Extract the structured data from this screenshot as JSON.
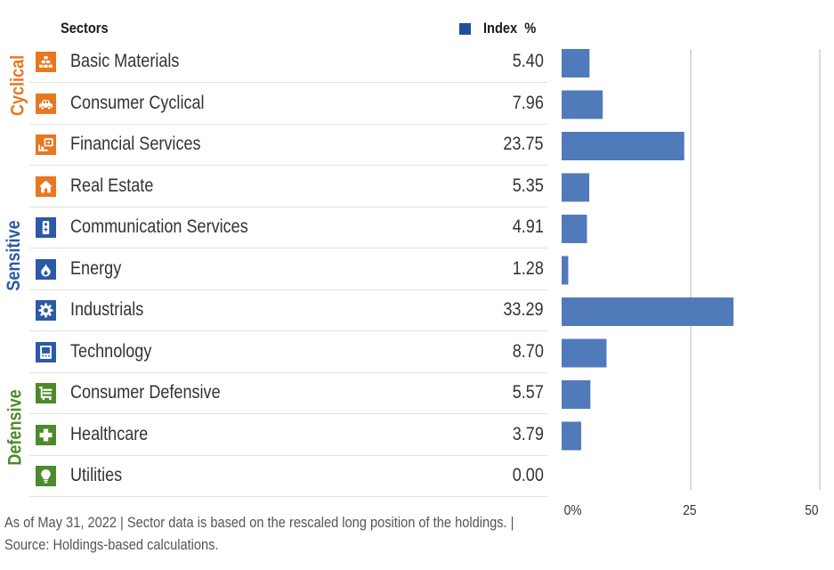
{
  "header": {
    "sectors_label": "Sectors",
    "legend_label": "Index  %"
  },
  "colors": {
    "cyclical": "#e87722",
    "sensitive": "#2a5aa8",
    "defensive": "#4e8a2c",
    "bar": "#4a76b8",
    "grid": "#cfcfcf"
  },
  "groups": [
    {
      "name": "Cyclical",
      "color": "#e87722"
    },
    {
      "name": "Sensitive",
      "color": "#2a5aa8"
    },
    {
      "name": "Defensive",
      "color": "#4e8a2c"
    }
  ],
  "rows": [
    {
      "name": "Basic Materials",
      "value": "5.40",
      "icon": "basic-materials-icon",
      "group": "Cyclical"
    },
    {
      "name": "Consumer Cyclical",
      "value": "7.96",
      "icon": "car-icon",
      "group": "Cyclical"
    },
    {
      "name": "Financial Services",
      "value": "23.75",
      "icon": "financial-services-icon",
      "group": "Cyclical"
    },
    {
      "name": "Real Estate",
      "value": "5.35",
      "icon": "house-icon",
      "group": "Cyclical"
    },
    {
      "name": "Communication Services",
      "value": "4.91",
      "icon": "phone-icon",
      "group": "Sensitive"
    },
    {
      "name": "Energy",
      "value": "1.28",
      "icon": "flame-icon",
      "group": "Sensitive"
    },
    {
      "name": "Industrials",
      "value": "33.29",
      "icon": "gear-icon",
      "group": "Sensitive"
    },
    {
      "name": "Technology",
      "value": "8.70",
      "icon": "computer-icon",
      "group": "Sensitive"
    },
    {
      "name": "Consumer Defensive",
      "value": "5.57",
      "icon": "cart-icon",
      "group": "Defensive"
    },
    {
      "name": "Healthcare",
      "value": "3.79",
      "icon": "cross-icon",
      "group": "Defensive"
    },
    {
      "name": "Utilities",
      "value": "0.00",
      "icon": "lightbulb-icon",
      "group": "Defensive"
    }
  ],
  "footnote": "As of May 31, 2022 | Sector data is based on the rescaled long position of the holdings. | Source: Holdings-based calculations.",
  "chart_data": {
    "type": "bar",
    "orientation": "horizontal",
    "title": "Sectors",
    "categories": [
      "Basic Materials",
      "Consumer Cyclical",
      "Financial Services",
      "Real Estate",
      "Communication Services",
      "Energy",
      "Industrials",
      "Technology",
      "Consumer Defensive",
      "Healthcare",
      "Utilities"
    ],
    "series": [
      {
        "name": "Index",
        "values": [
          5.4,
          7.96,
          23.75,
          5.35,
          4.91,
          1.28,
          33.29,
          8.7,
          5.57,
          3.79,
          0.0
        ]
      }
    ],
    "xlabel": "",
    "ylabel": "",
    "xlim": [
      0,
      50
    ],
    "xticks": [
      "0%",
      "25",
      "50"
    ],
    "xtick_values": [
      0,
      25,
      50
    ],
    "grid": true,
    "legend": "top-right"
  }
}
